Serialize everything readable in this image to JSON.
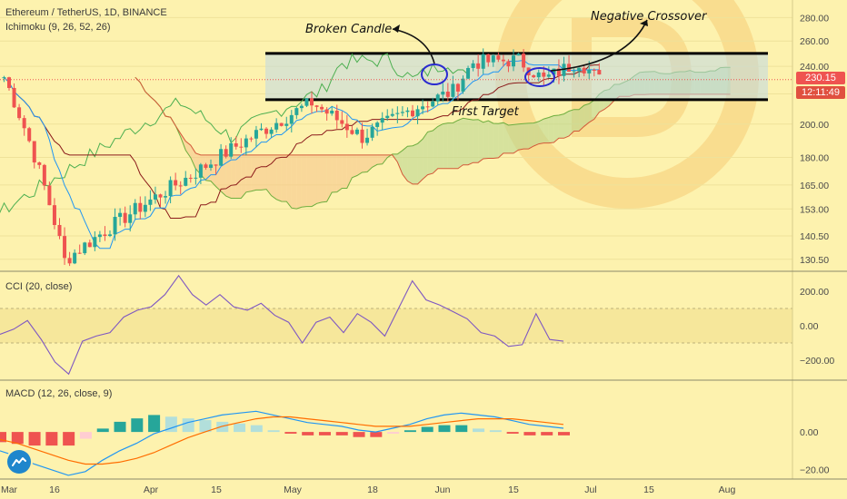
{
  "header": {
    "symbol_line": "Ethereum / TetherUS, 1D, BINANCE",
    "ichimoku_label": "Ichimoku (9, 26, 52, 26)",
    "cci_label": "CCI (20, close)",
    "macd_label": "MACD (12, 26, close, 9)"
  },
  "tags": {
    "last_price": "230.15",
    "countdown": "12:11:49"
  },
  "annotations": {
    "broken_candle": "Broken Candle",
    "negative_crossover": "Negative Crossover",
    "first_target": "First Target"
  },
  "colors": {
    "background": "#fdf2ae",
    "bull": "#26a69a",
    "bear": "#ef5350",
    "price_tag": "#ef5350",
    "countdown_tag": "#e0503f",
    "cloud_bull": "#b7d68f",
    "cloud_bear": "#f6c38a",
    "conversion": "#2196f3",
    "base": "#8b1a1a",
    "lagging": "#4caf50",
    "cci": "#7e57c2",
    "macd_line": "#2196f3",
    "signal_line": "#ff6d00",
    "box_fill": "#bfd8e6"
  },
  "chart_data": [
    {
      "type": "candlestick",
      "title": "Ethereum / TetherUS, 1D, BINANCE",
      "ylim": [
        126,
        296
      ],
      "y_scale": "log",
      "y_ticks": [
        130.5,
        140.5,
        153,
        165,
        180,
        200,
        220,
        240,
        260,
        280
      ],
      "y_tick_labels": [
        "130.50",
        "140.50",
        "153.00",
        "165.00",
        "180.00",
        "200.00",
        "220.00",
        "240.00",
        "260.00",
        "280.00"
      ],
      "x_tick_labels": [
        "Mar",
        "16",
        "Apr",
        "15",
        "May",
        "18",
        "Jun",
        "15",
        "Jul",
        "15",
        "Aug"
      ],
      "last_price": 230.15,
      "resistance_level": 250,
      "support_level": 216,
      "key_points": [
        {
          "date": "Feb-28",
          "price": 232
        },
        {
          "date": "Mar-12",
          "price": 130
        },
        {
          "date": "Apr-06",
          "price": 170
        },
        {
          "date": "Apr-30",
          "price": 214
        },
        {
          "date": "May-10",
          "price": 192
        },
        {
          "date": "May-20",
          "price": 210
        },
        {
          "date": "May-28",
          "price": 222
        },
        {
          "date": "Jun-01",
          "price": 243
        },
        {
          "date": "Jun-10",
          "price": 245
        },
        {
          "date": "Jun-15",
          "price": 230
        },
        {
          "date": "Jun-22",
          "price": 244
        },
        {
          "date": "Jun-26",
          "price": 230
        }
      ],
      "indicator": "Ichimoku (9, 26, 52, 26)"
    },
    {
      "type": "line",
      "title": "CCI (20, close)",
      "ylim": [
        -310,
        310
      ],
      "y_ticks": [
        200,
        0,
        -200
      ],
      "y_tick_labels": [
        "200.00",
        "0.00",
        "−200.00"
      ],
      "band": [
        -100,
        100
      ],
      "series": [
        {
          "values": [
            -50,
            -20,
            30,
            -80,
            -210,
            -280,
            -90,
            -60,
            -40,
            50,
            90,
            110,
            180,
            290,
            180,
            120,
            180,
            110,
            90,
            130,
            60,
            20,
            -100,
            20,
            50,
            -40,
            70,
            20,
            -60,
            100,
            260,
            150,
            120,
            80,
            40,
            -40,
            -60,
            -120,
            -110,
            70,
            -80,
            -90
          ]
        }
      ]
    },
    {
      "type": "bar",
      "title": "MACD (12, 26, close, 9)",
      "ylim": [
        -24,
        27
      ],
      "y_ticks": [
        0,
        -20
      ],
      "y_tick_labels": [
        "0.00",
        "−20.00"
      ],
      "series": [
        {
          "name": "MACD",
          "values": [
            -10,
            -13,
            -17,
            -20,
            -23,
            -21,
            -15,
            -10,
            -6,
            -1,
            2,
            5,
            7,
            9,
            10,
            11,
            9,
            7,
            5,
            4,
            3,
            1,
            0,
            2,
            4,
            7,
            9,
            10,
            9,
            8,
            6,
            4,
            3,
            2
          ]
        },
        {
          "name": "Signal",
          "values": [
            -4,
            -6,
            -9,
            -12,
            -15,
            -17,
            -17,
            -16,
            -14,
            -11,
            -7,
            -3,
            0,
            3,
            5,
            7,
            8,
            8,
            7,
            6,
            5,
            4,
            3,
            3,
            3,
            4,
            5,
            6,
            7,
            7,
            7,
            6,
            5,
            4
          ]
        }
      ]
    }
  ]
}
